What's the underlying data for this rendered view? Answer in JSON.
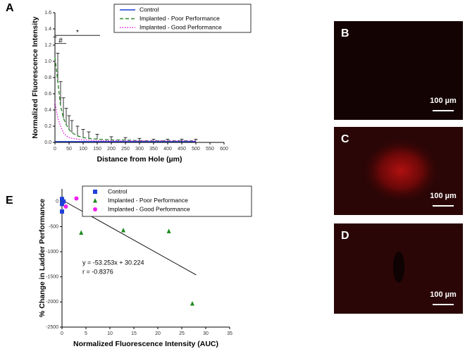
{
  "chart_data": [
    {
      "type": "line",
      "panel_label": "A",
      "xlabel": "Distance from Hole (µm)",
      "ylabel": "Normalized Fluorescence Intensity",
      "x": [
        0,
        10,
        20,
        30,
        40,
        50,
        60,
        80,
        100,
        120,
        150,
        200,
        250,
        300,
        350,
        400,
        450,
        500
      ],
      "series": [
        {
          "name": "Control",
          "color": "#1f3fd8",
          "dash": "solid",
          "values": [
            0.01,
            0.01,
            0.01,
            0.01,
            0.01,
            0.01,
            0.01,
            0.01,
            0.01,
            0.01,
            0.01,
            0.01,
            0.01,
            0.01,
            0.01,
            0.01,
            0.01,
            0.01
          ]
        },
        {
          "name": "Implanted - Poor Performance",
          "color": "#2e8b2e",
          "dash": "dashed",
          "values": [
            1.05,
            0.75,
            0.45,
            0.3,
            0.22,
            0.16,
            0.12,
            0.08,
            0.06,
            0.05,
            0.04,
            0.03,
            0.03,
            0.02,
            0.02,
            0.02,
            0.02,
            0.02
          ],
          "errors": [
            0.25,
            0.35,
            0.3,
            0.25,
            0.2,
            0.17,
            0.15,
            0.12,
            0.1,
            0.08,
            0.06,
            0.04,
            0.03,
            0.03,
            0.02,
            0.02,
            0.02,
            0.02
          ]
        },
        {
          "name": "Implanted - Good Performance",
          "color": "#e020e0",
          "dash": "dotted",
          "values": [
            0.5,
            0.3,
            0.2,
            0.12,
            0.08,
            0.06,
            0.05,
            0.04,
            0.03,
            0.03,
            0.02,
            0.02,
            0.02,
            0.02,
            0.02,
            0.02,
            0.02,
            0.02
          ]
        }
      ],
      "annotations": [
        {
          "text": "*",
          "x": [
            0,
            160
          ],
          "y": 1.32
        },
        {
          "text": "#",
          "x": [
            0,
            40
          ],
          "y": 1.22
        }
      ],
      "xlim": [
        0,
        600
      ],
      "xticks": [
        0,
        50,
        100,
        150,
        200,
        250,
        300,
        350,
        400,
        450,
        500,
        550,
        600
      ],
      "ylim": [
        0,
        1.6
      ],
      "yticks": [
        {
          "value": 0,
          "label": "0.0"
        },
        0.2,
        0.4,
        0.6,
        0.8,
        {
          "value": 1,
          "label": "1.0"
        },
        1.2,
        1.4,
        1.6
      ]
    },
    {
      "type": "scatter",
      "panel_label": "E",
      "xlabel": "Normalized Fluorescence Intensity (AUC)",
      "ylabel": "% Change in Ladder Performance",
      "series": [
        {
          "name": "Control",
          "color": "#1f3fd8",
          "marker": "square",
          "x": [
            0,
            0,
            0,
            0.3
          ],
          "values": [
            50,
            -50,
            -200,
            0
          ]
        },
        {
          "name": "Implanted - Poor Performance",
          "color": "#1e8a1e",
          "marker": "triangle",
          "x": [
            4,
            12.8,
            22.3,
            27.2
          ],
          "values": [
            -620,
            -570,
            -590,
            -2030
          ]
        },
        {
          "name": "Implanted - Good Performance",
          "color": "#f020f0",
          "marker": "circle",
          "x": [
            0.8,
            3,
            5,
            8.5
          ],
          "values": [
            -100,
            60,
            -10,
            -100
          ]
        }
      ],
      "fit": {
        "slope": -53.253,
        "intercept": 30.224,
        "x": [
          0,
          28
        ],
        "label": "y = -53.253x + 30.224",
        "r_label": "r = -0.8376"
      },
      "xlim": [
        0,
        35
      ],
      "xticks": [
        0,
        5,
        10,
        15,
        20,
        25,
        30,
        35
      ],
      "ylim": [
        -2500,
        250
      ],
      "yticks": [
        -2500,
        -2000,
        -1500,
        -1000,
        -500,
        0
      ]
    }
  ],
  "images": [
    {
      "label": "B",
      "scale": "100 µm"
    },
    {
      "label": "C",
      "scale": "100 µm"
    },
    {
      "label": "D",
      "scale": "100 µm"
    }
  ]
}
